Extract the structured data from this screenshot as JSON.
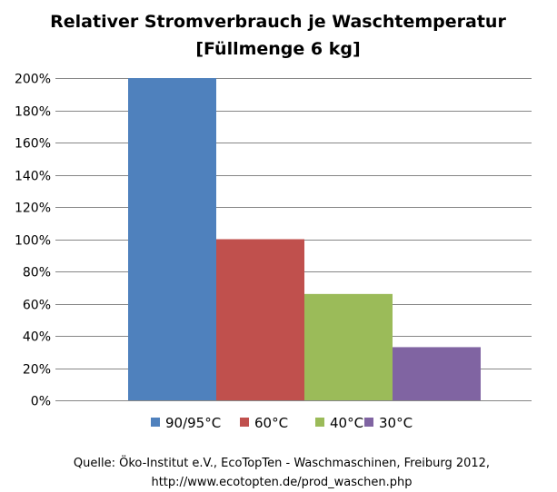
{
  "chart_data": {
    "type": "bar",
    "title_lines": [
      "Relativer Stromverbrauch je Waschtemperatur",
      "[Füllmenge 6 kg]"
    ],
    "xlabel": "",
    "ylabel": "",
    "ylim": [
      0,
      200
    ],
    "y_ticks": [
      "0%",
      "20%",
      "40%",
      "60%",
      "80%",
      "100%",
      "120%",
      "140%",
      "160%",
      "180%",
      "200%"
    ],
    "y_tick_values": [
      0,
      20,
      40,
      60,
      80,
      100,
      120,
      140,
      160,
      180,
      200
    ],
    "grid": true,
    "legend_position": "bottom",
    "series": [
      {
        "name": "90/95°C",
        "value": 200,
        "color": "#4F81BD"
      },
      {
        "name": "60°C",
        "value": 100,
        "color": "#C0504D"
      },
      {
        "name": "40°C",
        "value": 66,
        "color": "#9BBB59"
      },
      {
        "name": "30°C",
        "value": 33,
        "color": "#8064A2"
      }
    ]
  },
  "source_lines": [
    "Quelle: Öko-Institut e.V., EcoTopTen - Waschmaschinen, Freiburg 2012,",
    "http://www.ecotopten.de/prod_waschen.php"
  ]
}
